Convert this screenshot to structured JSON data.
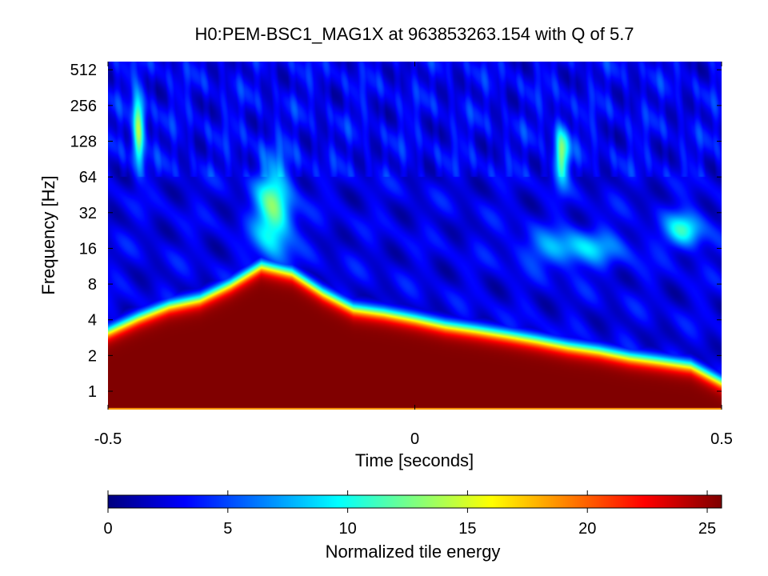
{
  "chart_data": {
    "type": "heatmap",
    "title": "H0:PEM-BSC1_MAG1X at 963853263.154 with Q of 5.7",
    "xlabel": "Time [seconds]",
    "ylabel": "Frequency [Hz]",
    "x_scale": "linear",
    "y_scale": "log2",
    "xlim": [
      -0.5,
      0.5
    ],
    "ylim": [
      0.7,
      600
    ],
    "x_ticks": [
      {
        "value": -0.5,
        "label": "-0.5"
      },
      {
        "value": 0,
        "label": "0"
      },
      {
        "value": 0.5,
        "label": "0.5"
      }
    ],
    "y_ticks": [
      {
        "value": 1,
        "label": "1"
      },
      {
        "value": 2,
        "label": "2"
      },
      {
        "value": 4,
        "label": "4"
      },
      {
        "value": 8,
        "label": "8"
      },
      {
        "value": 16,
        "label": "16"
      },
      {
        "value": 32,
        "label": "32"
      },
      {
        "value": 64,
        "label": "64"
      },
      {
        "value": 128,
        "label": "128"
      },
      {
        "value": 256,
        "label": "256"
      },
      {
        "value": 512,
        "label": "512"
      }
    ],
    "colormap": "jet",
    "colorbar": {
      "label": "Normalized tile energy",
      "range": [
        0,
        25.6
      ],
      "ticks": [
        {
          "value": 0,
          "label": "0"
        },
        {
          "value": 5,
          "label": "5"
        },
        {
          "value": 10,
          "label": "10"
        },
        {
          "value": 15,
          "label": "15"
        },
        {
          "value": 20,
          "label": "20"
        },
        {
          "value": 25,
          "label": "25"
        }
      ]
    },
    "background_energy": 2.5,
    "high_energy_region": {
      "energy": 25.6,
      "upper_edge_frequency": [
        {
          "t": -0.5,
          "f": 3.2
        },
        {
          "t": -0.45,
          "f": 4.2
        },
        {
          "t": -0.4,
          "f": 5.3
        },
        {
          "t": -0.35,
          "f": 6.0
        },
        {
          "t": -0.3,
          "f": 8.0
        },
        {
          "t": -0.25,
          "f": 11.5
        },
        {
          "t": -0.2,
          "f": 10.0
        },
        {
          "t": -0.15,
          "f": 6.8
        },
        {
          "t": -0.1,
          "f": 5.0
        },
        {
          "t": -0.05,
          "f": 4.6
        },
        {
          "t": 0.0,
          "f": 4.1
        },
        {
          "t": 0.05,
          "f": 3.6
        },
        {
          "t": 0.1,
          "f": 3.3
        },
        {
          "t": 0.15,
          "f": 3.0
        },
        {
          "t": 0.2,
          "f": 2.7
        },
        {
          "t": 0.25,
          "f": 2.4
        },
        {
          "t": 0.3,
          "f": 2.2
        },
        {
          "t": 0.35,
          "f": 1.95
        },
        {
          "t": 0.4,
          "f": 1.8
        },
        {
          "t": 0.45,
          "f": 1.65
        },
        {
          "t": 0.5,
          "f": 1.2
        }
      ],
      "lower_edge_frequency": 0.72
    },
    "features": [
      {
        "t": -0.23,
        "f": 32,
        "energy": 10,
        "width_t": 0.03,
        "width_oct": 1.3
      },
      {
        "t": -0.45,
        "f": 160,
        "energy": 11,
        "width_t": 0.01,
        "width_oct": 1.0
      },
      {
        "t": 0.24,
        "f": 100,
        "energy": 10,
        "width_t": 0.012,
        "width_oct": 0.8
      },
      {
        "t": 0.44,
        "f": 23,
        "energy": 8,
        "width_t": 0.03,
        "width_oct": 0.5
      },
      {
        "t": 0.26,
        "f": 16,
        "energy": 6,
        "width_t": 0.08,
        "width_oct": 0.5
      }
    ]
  }
}
